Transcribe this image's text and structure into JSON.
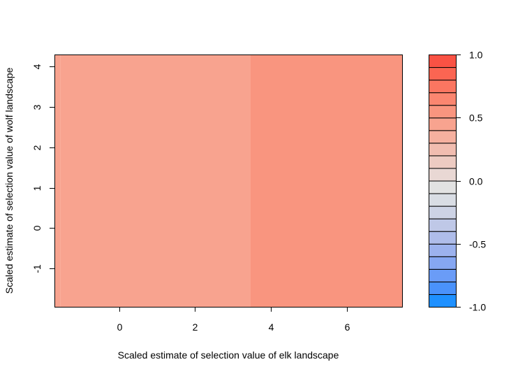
{
  "chart_data": {
    "type": "heatmap",
    "title": "",
    "xlabel": "Scaled estimate of selection value of elk landscape",
    "ylabel": "Scaled estimate of selection value of wolf landscape",
    "xlim": [
      -1.7,
      7.45
    ],
    "ylim": [
      -1.95,
      4.3
    ],
    "xticks": [
      0,
      2,
      4,
      6
    ],
    "yticks": [
      -1,
      0,
      1,
      2,
      3,
      4
    ],
    "cells": [
      {
        "x0": -1.7,
        "x1": -1.55,
        "y0": -1.95,
        "y1": 4.3,
        "value": 0.45
      },
      {
        "x0": -1.55,
        "x1": 3.45,
        "y0": -1.95,
        "y1": 4.3,
        "value": 0.4
      },
      {
        "x0": 3.45,
        "x1": 7.45,
        "y0": -1.95,
        "y1": 4.3,
        "value": 0.55
      }
    ],
    "colorbar": {
      "min": -1.0,
      "max": 1.0,
      "ticks": [
        1.0,
        0.5,
        0.0,
        -0.5,
        -1.0
      ],
      "tick_labels": [
        "1.0",
        "0.5",
        "0.0",
        "-0.5",
        "-1.0"
      ],
      "levels": [
        {
          "from": -1.0,
          "to": -0.9,
          "color": "#1e90ff"
        },
        {
          "from": -0.9,
          "to": -0.8,
          "color": "#4a92fb"
        },
        {
          "from": -0.8,
          "to": -0.7,
          "color": "#6a9cf7"
        },
        {
          "from": -0.7,
          "to": -0.6,
          "color": "#86a7f2"
        },
        {
          "from": -0.6,
          "to": -0.5,
          "color": "#9cb2ee"
        },
        {
          "from": -0.5,
          "to": -0.4,
          "color": "#afbdea"
        },
        {
          "from": -0.4,
          "to": -0.3,
          "color": "#bfc8e7"
        },
        {
          "from": -0.3,
          "to": -0.2,
          "color": "#cdd3e5"
        },
        {
          "from": -0.2,
          "to": -0.1,
          "color": "#d9dde4"
        },
        {
          "from": -0.1,
          "to": 0.0,
          "color": "#e2e2e2"
        },
        {
          "from": 0.0,
          "to": 0.1,
          "color": "#e9d8d4"
        },
        {
          "from": 0.1,
          "to": 0.2,
          "color": "#edcbc2"
        },
        {
          "from": 0.2,
          "to": 0.3,
          "color": "#f1bdb0"
        },
        {
          "from": 0.3,
          "to": 0.4,
          "color": "#f5b09f"
        },
        {
          "from": 0.4,
          "to": 0.5,
          "color": "#f8a38f"
        },
        {
          "from": 0.5,
          "to": 0.6,
          "color": "#f9957f"
        },
        {
          "from": 0.6,
          "to": 0.7,
          "color": "#fb8670"
        },
        {
          "from": 0.7,
          "to": 0.8,
          "color": "#fb7661"
        },
        {
          "from": 0.8,
          "to": 0.9,
          "color": "#fb6552"
        },
        {
          "from": 0.9,
          "to": 1.0,
          "color": "#f95244"
        }
      ]
    }
  }
}
